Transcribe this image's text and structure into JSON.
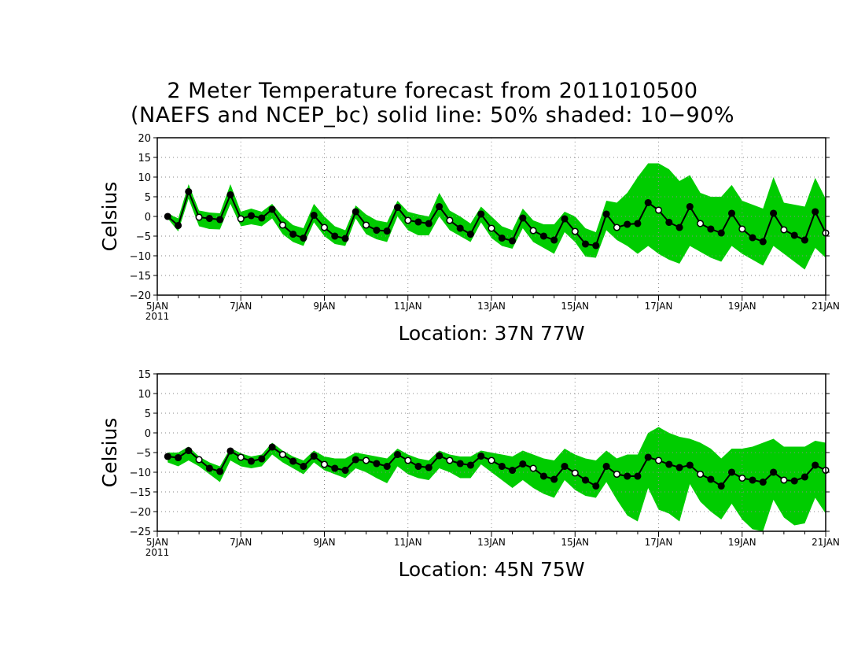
{
  "figure": {
    "title_line1": "2 Meter Temperature forecast from 2011010500",
    "title_line2": "(NAEFS and NCEP_bc) solid line: 50% shaded: 10−90%"
  },
  "colors": {
    "band": "#00cc00",
    "median": "#000000",
    "grid": "#888888"
  },
  "chart_data": [
    {
      "type": "line",
      "location_label": "Location: 37N 77W",
      "ylabel": "Celsius",
      "ylim": [
        -20,
        20
      ],
      "y_ticks": [
        -20,
        -15,
        -10,
        -5,
        0,
        5,
        10,
        15,
        20
      ],
      "y_tick_labels": [
        "−20",
        "−15",
        "−10",
        "−5",
        "0",
        "5",
        "10",
        "15",
        "20"
      ],
      "x_range_days": [
        5,
        21
      ],
      "x_ticks": [
        5,
        7,
        9,
        11,
        13,
        15,
        17,
        19,
        21
      ],
      "x_tick_labels": [
        "5JAN",
        "7JAN",
        "9JAN",
        "11JAN",
        "13JAN",
        "15JAN",
        "17JAN",
        "19JAN",
        "21JAN"
      ],
      "x_sublabel": "2011",
      "grid": true,
      "x_days": [
        5.25,
        5.5,
        5.75,
        6.0,
        6.25,
        6.5,
        6.75,
        7.0,
        7.25,
        7.5,
        7.75,
        8.0,
        8.25,
        8.5,
        8.75,
        9.0,
        9.25,
        9.5,
        9.75,
        10.0,
        10.25,
        10.5,
        10.75,
        11.0,
        11.25,
        11.5,
        11.75,
        12.0,
        12.25,
        12.5,
        12.75,
        13.0,
        13.25,
        13.5,
        13.75,
        14.0,
        14.25,
        14.5,
        14.75,
        15.0,
        15.25,
        15.5,
        15.75,
        16.0,
        16.25,
        16.5,
        16.75,
        17.0,
        17.25,
        17.5,
        17.75,
        18.0,
        18.25,
        18.5,
        18.75,
        19.0,
        19.25,
        19.5,
        19.75,
        20.0,
        20.25,
        20.5,
        20.75,
        21.0
      ],
      "series": [
        {
          "values": [
            0,
            -2.3,
            6.3,
            -0.2,
            -0.5,
            -0.8,
            5.5,
            -0.6,
            0.2,
            -0.4,
            1.8,
            -2.2,
            -4.5,
            -5.5,
            0.3,
            -2.8,
            -5,
            -5.6,
            1.2,
            -2.2,
            -3.5,
            -3.7,
            2.3,
            -1,
            -1.4,
            -1.8,
            2.5,
            -1,
            -3,
            -4.5,
            0.6,
            -3,
            -5.5,
            -6.2,
            -0.4,
            -3.6,
            -5,
            -6,
            -0.6,
            -3.8,
            -7,
            -7.4,
            0.6,
            -2.8,
            -2,
            -1.8,
            3.5,
            1.6,
            -1.5,
            -2.8,
            2.5,
            -1.8,
            -3.2,
            -4.2,
            0.8,
            -3.2,
            -5.4,
            -6.4,
            0.8,
            -3.4,
            -4.8,
            -6,
            1.2,
            -4.2
          ]
        }
      ],
      "band_p10": [
        -0.5,
        -3.8,
        4.5,
        -2.5,
        -3.2,
        -3.3,
        3.2,
        -2.5,
        -2,
        -2.5,
        -0.5,
        -4.5,
        -6.5,
        -7.5,
        -1.5,
        -5,
        -7,
        -7.5,
        -0.5,
        -4.5,
        -5.8,
        -6.5,
        0,
        -3.5,
        -4.8,
        -4.8,
        0,
        -3.5,
        -5,
        -6.5,
        -1.5,
        -5.5,
        -7.5,
        -8.2,
        -3,
        -6.5,
        -8,
        -9.5,
        -4,
        -6.5,
        -10.2,
        -10.5,
        -3.5,
        -6,
        -7.5,
        -9.5,
        -7.5,
        -9.5,
        -11,
        -12,
        -7.5,
        -9,
        -10.5,
        -11.5,
        -7.5,
        -9.5,
        -11,
        -12.5,
        -7.5,
        -9.5,
        -11.5,
        -13.5,
        -8,
        -10.5
      ],
      "band_p90": [
        0.8,
        -0.5,
        8.2,
        1.5,
        1,
        0.8,
        8.2,
        1.2,
        2,
        1.2,
        3.2,
        0,
        -2.2,
        -3,
        3.2,
        0,
        -2.5,
        -3.5,
        2.8,
        0.5,
        -1,
        -1.5,
        4,
        1.2,
        0.5,
        0,
        6,
        1.5,
        0,
        -1.8,
        2.5,
        0,
        -2.5,
        -3.5,
        2,
        -1,
        -2,
        -2,
        1.2,
        0,
        -3,
        -4,
        4,
        3.5,
        6,
        10,
        13.5,
        13.5,
        12,
        9,
        10.5,
        6,
        5,
        5,
        8,
        4,
        3,
        2,
        10,
        3.5,
        3,
        2.5,
        9.8,
        4.5
      ]
    },
    {
      "type": "line",
      "location_label": "Location: 45N 75W",
      "ylabel": "Celsius",
      "ylim": [
        -25,
        15
      ],
      "y_ticks": [
        -25,
        -20,
        -15,
        -10,
        -5,
        0,
        5,
        10,
        15
      ],
      "y_tick_labels": [
        "−25",
        "−20",
        "−15",
        "−10",
        "−5",
        "0",
        "5",
        "10",
        "15"
      ],
      "x_range_days": [
        5,
        21
      ],
      "x_ticks": [
        5,
        7,
        9,
        11,
        13,
        15,
        17,
        19,
        21
      ],
      "x_tick_labels": [
        "5JAN",
        "7JAN",
        "9JAN",
        "11JAN",
        "13JAN",
        "15JAN",
        "17JAN",
        "19JAN",
        "21JAN"
      ],
      "x_sublabel": "2011",
      "grid": true,
      "x_days": [
        5.25,
        5.5,
        5.75,
        6.0,
        6.25,
        6.5,
        6.75,
        7.0,
        7.25,
        7.5,
        7.75,
        8.0,
        8.25,
        8.5,
        8.75,
        9.0,
        9.25,
        9.5,
        9.75,
        10.0,
        10.25,
        10.5,
        10.75,
        11.0,
        11.25,
        11.5,
        11.75,
        12.0,
        12.25,
        12.5,
        12.75,
        13.0,
        13.25,
        13.5,
        13.75,
        14.0,
        14.25,
        14.5,
        14.75,
        15.0,
        15.25,
        15.5,
        15.75,
        16.0,
        16.25,
        16.5,
        16.75,
        17.0,
        17.25,
        17.5,
        17.75,
        18.0,
        18.25,
        18.5,
        18.75,
        19.0,
        19.25,
        19.5,
        19.75,
        20.0,
        20.25,
        20.5,
        20.75,
        21.0
      ],
      "series": [
        {
          "values": [
            -6,
            -6.3,
            -4.5,
            -6.8,
            -9,
            -9.8,
            -4.6,
            -6.2,
            -7.2,
            -6.6,
            -3.6,
            -5.5,
            -7.2,
            -8.5,
            -5.9,
            -8,
            -9,
            -9.5,
            -6.8,
            -7,
            -7.8,
            -8.5,
            -5.5,
            -7,
            -8.5,
            -8.8,
            -5.8,
            -7,
            -7.8,
            -8.2,
            -5.9,
            -7,
            -8.5,
            -9.5,
            -7.9,
            -9,
            -11,
            -11.8,
            -8.5,
            -10.2,
            -12,
            -13.5,
            -8.5,
            -10.5,
            -11,
            -11,
            -6.2,
            -7,
            -8,
            -8.8,
            -8.2,
            -10.5,
            -11.8,
            -13.5,
            -10,
            -11.5,
            -12,
            -12.5,
            -10,
            -12,
            -12.2,
            -11.2,
            -8.2,
            -9.5
          ]
        }
      ],
      "band_p10": [
        -7.5,
        -8.5,
        -7,
        -8.5,
        -10.5,
        -12.5,
        -7,
        -8.5,
        -9,
        -8.5,
        -5.5,
        -7.5,
        -9,
        -10.5,
        -7.5,
        -9.5,
        -10.5,
        -11.5,
        -9,
        -10,
        -11.5,
        -12.8,
        -8.5,
        -10.5,
        -11.5,
        -12,
        -9,
        -10,
        -11.5,
        -11.5,
        -8,
        -10,
        -12,
        -14,
        -12,
        -14,
        -15.5,
        -16.5,
        -12,
        -14.5,
        -16,
        -16.5,
        -12.5,
        -17,
        -21,
        -22.5,
        -14,
        -19.5,
        -20.5,
        -22.5,
        -13,
        -17.5,
        -20,
        -22,
        -18,
        -22,
        -24.5,
        -25,
        -17,
        -21.5,
        -23.5,
        -23,
        -16.5,
        -20.5
      ],
      "band_p90": [
        -5,
        -5,
        -3.5,
        -6,
        -7.5,
        -8.5,
        -3.8,
        -5.2,
        -6,
        -5.5,
        -2.5,
        -4.5,
        -6,
        -7,
        -4.5,
        -6,
        -6.5,
        -6.5,
        -5,
        -5.5,
        -6,
        -6.5,
        -4,
        -5.5,
        -6.5,
        -7,
        -4.5,
        -5.5,
        -6,
        -6,
        -4.5,
        -5,
        -5.5,
        -6,
        -4.5,
        -5.5,
        -6.5,
        -7,
        -4,
        -5.5,
        -6.5,
        -7,
        -4.5,
        -6.5,
        -5.5,
        -5.5,
        0,
        1.5,
        0,
        -1,
        -1.5,
        -2.5,
        -4,
        -6.5,
        -4,
        -4,
        -3.5,
        -2.5,
        -1.5,
        -3.5,
        -3.5,
        -3.5,
        -2,
        -2.5
      ]
    }
  ]
}
